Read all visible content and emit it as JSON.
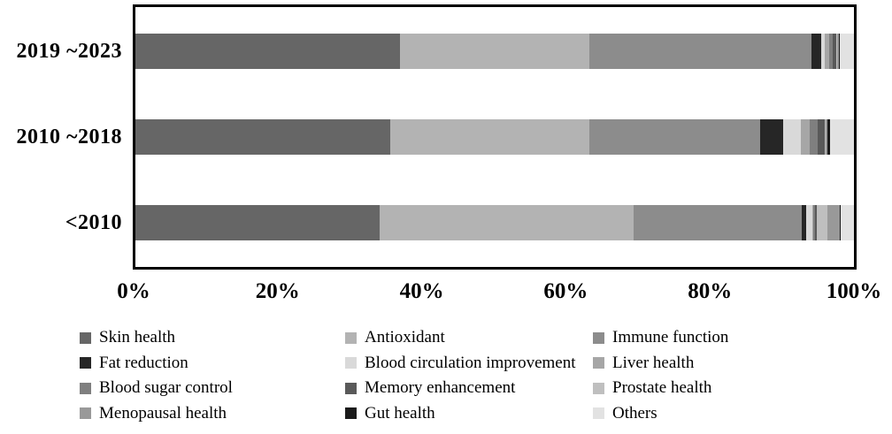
{
  "chart_data": {
    "type": "bar",
    "subtype": "horizontal-stacked-100pct",
    "title": "",
    "xlabel": "",
    "ylabel": "",
    "xlim": [
      0,
      100
    ],
    "grid": false,
    "legend_position": "bottom",
    "categories": [
      "2019 ~2023",
      "2010 ~2018",
      "<2010"
    ],
    "x_ticks": [
      "0%",
      "20%",
      "40%",
      "60%",
      "80%",
      "100%"
    ],
    "series": [
      {
        "name": "Skin health",
        "color": "#666666",
        "values": [
          36.8,
          35.5,
          34.0
        ]
      },
      {
        "name": "Antioxidant",
        "color": "#b3b3b3",
        "values": [
          26.4,
          27.7,
          35.3
        ]
      },
      {
        "name": "Immune function",
        "color": "#8c8c8c",
        "values": [
          30.9,
          23.8,
          23.4
        ]
      },
      {
        "name": "Fat reduction",
        "color": "#262626",
        "values": [
          1.3,
          3.2,
          0.6
        ]
      },
      {
        "name": "Blood circulation improvement",
        "color": "#d9d9d9",
        "values": [
          0.6,
          2.4,
          0.9
        ]
      },
      {
        "name": "Liver health",
        "color": "#a6a6a6",
        "values": [
          0.5,
          1.3,
          0.2
        ]
      },
      {
        "name": "Blood sugar control",
        "color": "#7f7f7f",
        "values": [
          0.5,
          1.0,
          0.2
        ]
      },
      {
        "name": "Memory enhancement",
        "color": "#595959",
        "values": [
          0.5,
          1.0,
          0.2
        ]
      },
      {
        "name": "Prostate health",
        "color": "#bfbfbf",
        "values": [
          0.2,
          0.2,
          1.5
        ]
      },
      {
        "name": "Menopausal health",
        "color": "#999999",
        "values": [
          0.2,
          0.2,
          1.8
        ]
      },
      {
        "name": "Gut health",
        "color": "#1a1a1a",
        "values": [
          0.2,
          0.4,
          0.1
        ]
      },
      {
        "name": "Others",
        "color": "#e2e2e2",
        "values": [
          1.9,
          3.3,
          1.8
        ]
      }
    ]
  },
  "colors": {
    "plot_border": "#000000",
    "background": "#ffffff",
    "text": "#000000"
  }
}
